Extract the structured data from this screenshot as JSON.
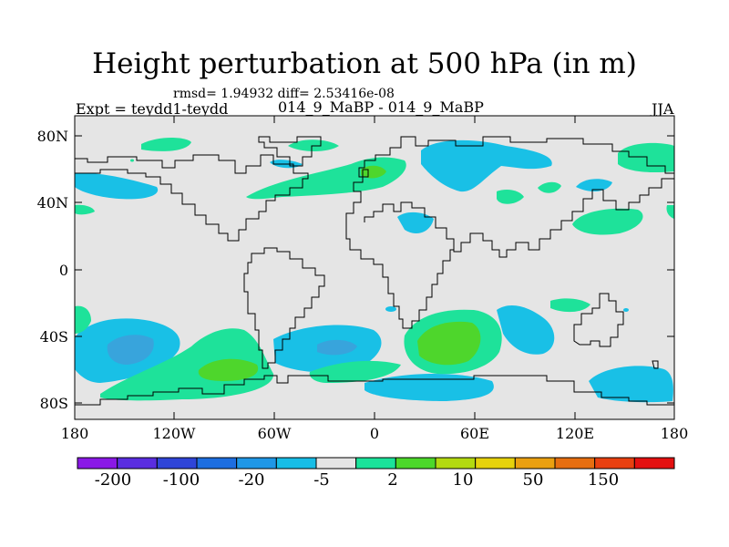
{
  "title": "Height perturbation at 500 hPa (in m)",
  "stats": "rmsd= 1.94932 diff= 2.53416e-08",
  "left_label": "Expt = teydd1-teydd",
  "center_label": "014_9_MaBP - 014_9_MaBP",
  "season": "JJA",
  "map": {
    "lon_range": [
      -180,
      180
    ],
    "lat_range": [
      -90,
      90
    ],
    "background": "#e5e5e5",
    "y_tick_labels": [
      "80N",
      "40N",
      "0",
      "40S",
      "80S"
    ],
    "y_tick_values": [
      80,
      40,
      0,
      -40,
      -80
    ],
    "x_tick_labels": [
      "180",
      "120W",
      "60W",
      "0",
      "60E",
      "120E",
      "180"
    ],
    "x_tick_values": [
      -180,
      -120,
      -60,
      0,
      60,
      120,
      180
    ]
  },
  "colorbar": {
    "colors": [
      "#8a18e6",
      "#5a2de0",
      "#2f45d8",
      "#1d6ee0",
      "#1f97e6",
      "#17bde6",
      "#e5e5e5",
      "#1be39a",
      "#4cd82a",
      "#b3da10",
      "#e6d20c",
      "#eaa010",
      "#e66e10",
      "#e84010",
      "#e41010"
    ],
    "labels": [
      "-200",
      "-100",
      "-20",
      "-5",
      "2",
      "10",
      "50",
      "150"
    ]
  },
  "legend": {
    "neg_strong": "#38a4dc",
    "neg_weak": "#19c0e6",
    "pos_weak": "#1ee29a",
    "pos_strong": "#4ed62c"
  }
}
